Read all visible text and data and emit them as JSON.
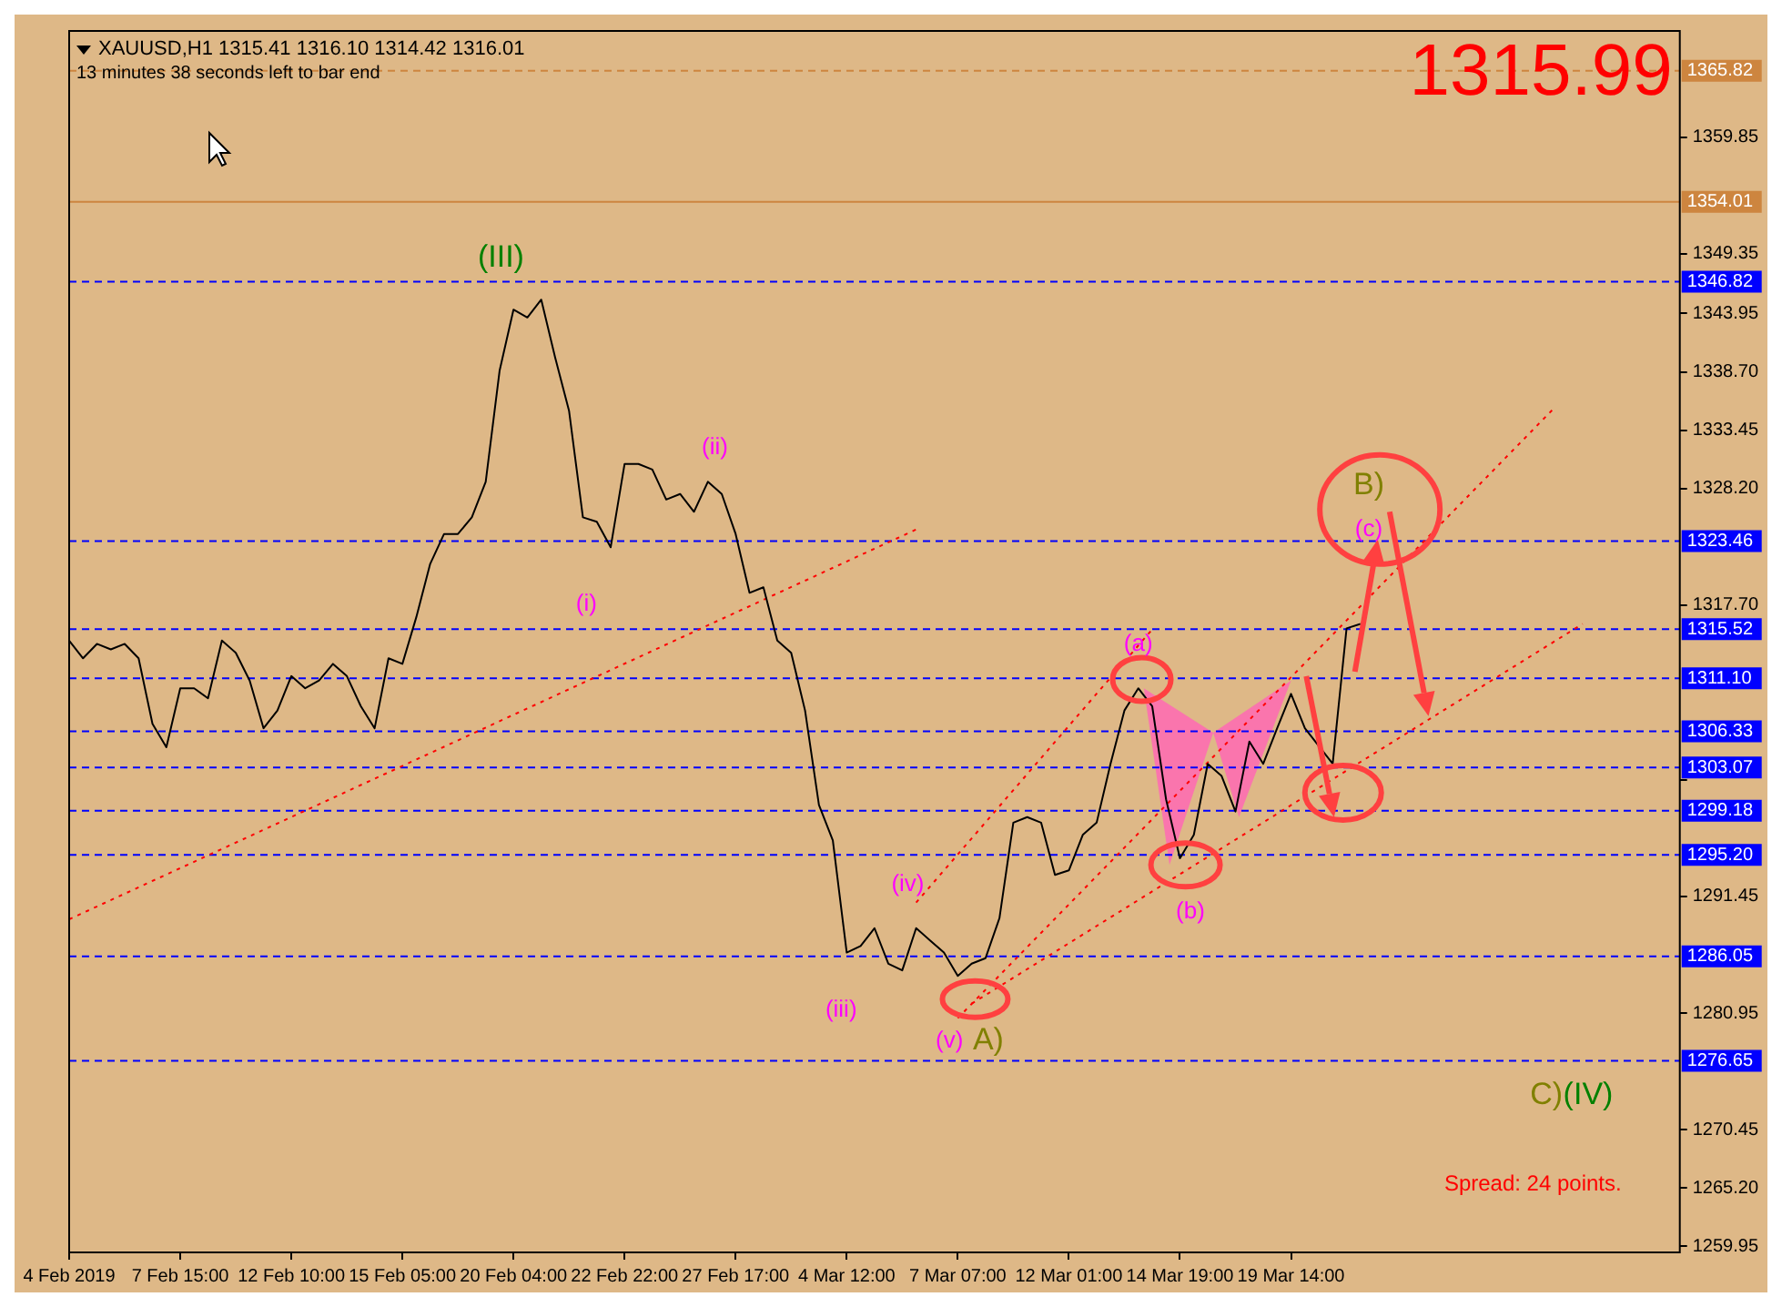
{
  "chart_data": {
    "type": "line",
    "title": "XAUUSD,H1  1315.41 1316.10 1314.42 1316.01",
    "subtitle": "13 minutes 38 seconds left to bar end",
    "categories": [
      "4 Feb 2019",
      null,
      null,
      null,
      null,
      null,
      null,
      null,
      "7 Feb 15:00",
      null,
      null,
      null,
      null,
      null,
      null,
      null,
      "12 Feb 10:00",
      null,
      null,
      null,
      null,
      null,
      null,
      null,
      "15 Feb 05:00",
      null,
      null,
      null,
      null,
      null,
      null,
      null,
      "20 Feb 04:00",
      null,
      null,
      null,
      null,
      null,
      null,
      null,
      "22 Feb 22:00",
      null,
      null,
      null,
      null,
      null,
      null,
      null,
      "27 Feb 17:00",
      null,
      null,
      null,
      null,
      null,
      null,
      null,
      "4 Mar 12:00",
      null,
      null,
      null,
      null,
      null,
      null,
      null,
      "7 Mar 07:00",
      null,
      null,
      null,
      null,
      null,
      null,
      null,
      "12 Mar 01:00",
      null,
      null,
      null,
      null,
      null,
      null,
      null,
      "14 Mar 19:00",
      null,
      null,
      null,
      null,
      null,
      null,
      null,
      "19 Mar 14:00",
      null,
      null,
      null,
      null,
      null,
      null,
      null,
      null,
      null,
      null,
      null,
      null,
      null,
      null,
      null,
      null,
      null,
      null,
      null,
      null,
      null,
      null,
      null,
      null,
      null,
      null,
      null,
      null
    ],
    "series": [
      {
        "color": "#000000",
        "line_style": "solid",
        "values": [
          1314.5,
          1312.9,
          1314.2,
          1313.7,
          1314.2,
          1312.9,
          1307.0,
          1304.9,
          1310.2,
          1310.2,
          1309.3,
          1314.5,
          1313.4,
          1310.9,
          1306.6,
          1308.2,
          1311.3,
          1310.2,
          1310.9,
          1312.4,
          1311.3,
          1308.6,
          1306.6,
          1312.9,
          1312.4,
          1316.6,
          1321.4,
          1324.1,
          1324.1,
          1325.6,
          1328.8,
          1338.8,
          1344.3,
          1343.6,
          1345.2,
          1340.0,
          1335.2,
          1325.6,
          1325.2,
          1322.9,
          1330.4,
          1330.4,
          1329.9,
          1327.2,
          1327.7,
          1326.1,
          1328.8,
          1327.7,
          1324.1,
          1318.8,
          1319.3,
          1314.5,
          1313.4,
          1308.2,
          1299.7,
          1296.5,
          1286.4,
          1287.0,
          1288.6,
          1285.4,
          1284.8,
          1288.6,
          1287.5,
          1286.4,
          1284.3,
          1285.4,
          1285.9,
          1289.5,
          1298.1,
          1298.6,
          1298.1,
          1293.4,
          1293.8,
          1297.0,
          1298.1,
          1303.4,
          1308.2,
          1310.2,
          1308.6,
          1300.2,
          1294.9,
          1297.0,
          1303.4,
          1302.3,
          1299.1,
          1305.4,
          1303.4,
          1306.6,
          1309.7,
          1306.6,
          1305.0,
          1303.4,
          1315.6,
          1316.0,
          null,
          null,
          null,
          null,
          null,
          null,
          null,
          null,
          null,
          null,
          null,
          null,
          null,
          null,
          null,
          null,
          null,
          null,
          null,
          null,
          null,
          null,
          null
        ]
      },
      {
        "type": "line",
        "color": "#ff0000",
        "line_style": "dotted",
        "values": [
          1289.4,
          null,
          null,
          null,
          null,
          null,
          null,
          null,
          null,
          null,
          null,
          null,
          null,
          null,
          null,
          null,
          null,
          null,
          null,
          null,
          null,
          null,
          null,
          null,
          null,
          null,
          null,
          null,
          null,
          null,
          null,
          null,
          null,
          null,
          null,
          null,
          null,
          null,
          null,
          null,
          null,
          null,
          null,
          null,
          null,
          null,
          null,
          null,
          null,
          null,
          null,
          null,
          null,
          null,
          null,
          null,
          null,
          null,
          null,
          null,
          null,
          1324.5,
          null,
          null,
          null,
          null,
          null,
          null,
          null,
          null,
          null,
          null,
          null,
          null,
          null,
          null,
          null,
          null,
          null,
          null,
          null,
          null,
          null,
          null,
          null,
          null,
          null,
          null,
          null,
          null,
          null,
          null,
          null,
          null,
          null,
          null,
          null,
          null,
          null,
          null,
          null,
          null,
          null,
          null,
          null,
          null,
          null,
          null,
          null,
          null,
          null,
          null,
          null,
          null,
          null,
          null,
          null
        ]
      },
      {
        "type": "line",
        "color": "#ff0000",
        "line_style": "dotted",
        "values": [
          null,
          null,
          null,
          null,
          null,
          null,
          null,
          null,
          null,
          null,
          null,
          null,
          null,
          null,
          null,
          null,
          null,
          null,
          null,
          null,
          null,
          null,
          null,
          null,
          null,
          null,
          null,
          null,
          null,
          null,
          null,
          null,
          null,
          null,
          null,
          null,
          null,
          null,
          null,
          null,
          null,
          null,
          null,
          null,
          null,
          null,
          null,
          null,
          null,
          null,
          null,
          null,
          null,
          null,
          null,
          null,
          null,
          null,
          null,
          null,
          null,
          null,
          null,
          null,
          1280.5,
          null,
          null,
          null,
          null,
          null,
          null,
          null,
          null,
          null,
          null,
          null,
          null,
          null,
          null,
          null,
          null,
          null,
          null,
          null,
          null,
          null,
          null,
          null,
          null,
          null,
          null,
          null,
          null,
          null,
          null,
          null,
          null,
          null,
          null,
          null,
          null,
          null,
          null,
          null,
          null,
          null,
          null,
          1335.5,
          null,
          null,
          null,
          null,
          null,
          null,
          null,
          null,
          null
        ]
      },
      {
        "type": "line",
        "color": "#ff0000",
        "line_style": "dotted",
        "values": [
          null,
          null,
          null,
          null,
          null,
          null,
          null,
          null,
          null,
          null,
          null,
          null,
          null,
          null,
          null,
          null,
          null,
          null,
          null,
          null,
          null,
          null,
          null,
          null,
          null,
          null,
          null,
          null,
          null,
          null,
          null,
          null,
          null,
          null,
          null,
          null,
          null,
          null,
          null,
          null,
          null,
          null,
          null,
          null,
          null,
          null,
          null,
          null,
          null,
          null,
          null,
          null,
          null,
          null,
          null,
          null,
          null,
          null,
          null,
          null,
          null,
          null,
          null,
          null,
          null,
          1281.8,
          null,
          null,
          null,
          null,
          null,
          null,
          null,
          null,
          null,
          null,
          null,
          null,
          null,
          null,
          null,
          null,
          null,
          null,
          null,
          null,
          null,
          null,
          null,
          null,
          null,
          null,
          null,
          null,
          null,
          null,
          null,
          null,
          null,
          null,
          null,
          null,
          null,
          null,
          null,
          null,
          null,
          null,
          null,
          1316.0,
          null,
          null,
          null,
          null,
          null,
          null,
          null
        ]
      },
      {
        "type": "line",
        "color": "#ff0000",
        "line_style": "dotted",
        "values": [
          null,
          null,
          null,
          null,
          null,
          null,
          null,
          null,
          null,
          null,
          null,
          null,
          null,
          null,
          null,
          null,
          null,
          null,
          null,
          null,
          null,
          null,
          null,
          null,
          null,
          null,
          null,
          null,
          null,
          null,
          null,
          null,
          null,
          null,
          null,
          null,
          null,
          null,
          null,
          null,
          null,
          null,
          null,
          null,
          null,
          null,
          null,
          null,
          null,
          null,
          null,
          null,
          null,
          null,
          null,
          null,
          null,
          null,
          null,
          null,
          null,
          1290.9,
          null,
          null,
          null,
          null,
          null,
          null,
          null,
          null,
          null,
          null,
          null,
          null,
          null,
          null,
          null,
          null,
          1315.5,
          null,
          null,
          null,
          null,
          null,
          null,
          null,
          null,
          null,
          null,
          null,
          null,
          null,
          null,
          null,
          null,
          null,
          null,
          null,
          null,
          null,
          null,
          null,
          null,
          null,
          null,
          null,
          null,
          null,
          null,
          null,
          null,
          null,
          null,
          null,
          null,
          null,
          null
        ]
      }
    ],
    "ylim": [
      1259.4,
      1369.4
    ],
    "yticks": [
      1259.95,
      {
        "value": 1265.2,
        "label": "1265.20"
      },
      1270.45,
      1280.95,
      1291.45,
      {
        "value": 1301.95,
        "label": null
      },
      {
        "value": 1317.7,
        "label": "1317.70"
      },
      {
        "value": 1328.2,
        "label": "1328.20"
      },
      1333.45,
      {
        "value": 1338.7,
        "label": "1338.70"
      },
      1343.95,
      1349.35,
      1359.85
    ],
    "ref_lines": [
      {
        "axis": "y",
        "value": 1365.82,
        "label": "1365.82",
        "color": "#cd853f",
        "line_style": "dashed"
      },
      {
        "axis": "y",
        "value": 1354.01,
        "label": "1354.01",
        "color": "#cd853f",
        "line_style": "solid"
      },
      {
        "axis": "y",
        "value": 1346.82,
        "label": "1346.82",
        "color": "#0000ff",
        "line_style": "dashed"
      },
      {
        "axis": "y",
        "value": 1323.46,
        "label": "1323.46",
        "color": "#0000ff",
        "line_style": "dashed"
      },
      {
        "axis": "y",
        "value": 1315.52,
        "label": "1315.52",
        "color": "#0000ff",
        "line_style": "dashed"
      },
      {
        "axis": "y",
        "value": 1311.1,
        "label": "1311.10",
        "color": "#0000ff",
        "line_style": "dashed"
      },
      {
        "axis": "y",
        "value": 1306.33,
        "label": "1306.33",
        "color": "#0000ff",
        "line_style": "dashed"
      },
      {
        "axis": "y",
        "value": 1303.07,
        "label": "1303.07",
        "color": "#0000ff",
        "line_style": "dashed"
      },
      {
        "axis": "y",
        "value": 1299.18,
        "label": "1299.18",
        "color": "#0000ff",
        "line_style": "dashed"
      },
      {
        "axis": "y",
        "value": 1295.2,
        "label": "1295.20",
        "color": "#0000ff",
        "line_style": "dashed"
      },
      {
        "axis": "y",
        "value": 1286.05,
        "label": "1286.05",
        "color": "#0000ff",
        "line_style": "dashed"
      },
      {
        "axis": "y",
        "value": 1276.65,
        "label": "1276.65",
        "color": "#0000ff",
        "line_style": "dashed"
      }
    ],
    "annotations": [
      "1315.99",
      "Spread: 24 points.",
      "(III)",
      "(i)",
      "(ii)",
      "(iii)",
      "(iv)",
      "(v)",
      "A)",
      "(a)",
      "(b)",
      {
        "text": "(c)",
        "y": 1323.6
      },
      "B)",
      "C)",
      "(IV)"
    ]
  }
}
